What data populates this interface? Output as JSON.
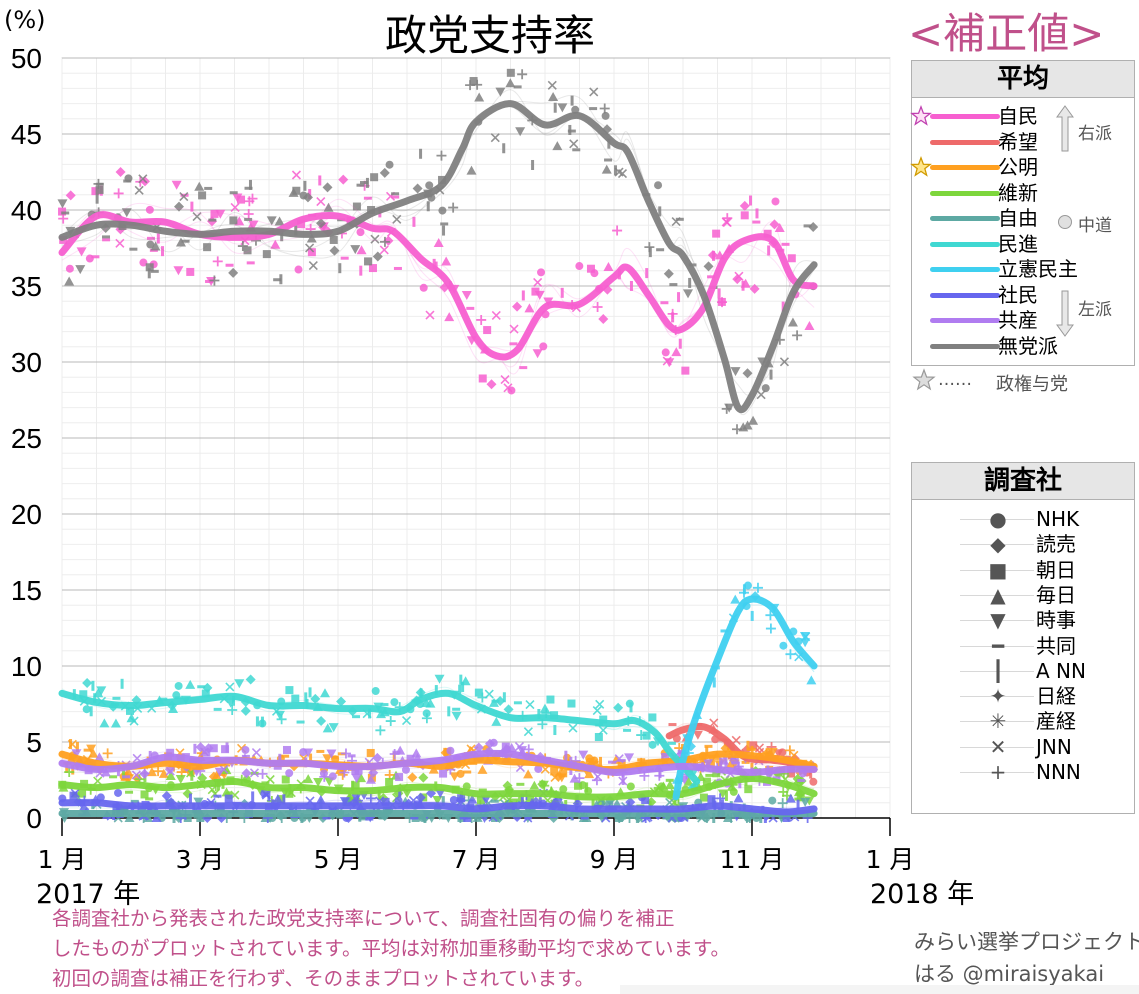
{
  "title": "政党支持率",
  "subtitle": "<補正値>",
  "y_unit": "(%)",
  "year_labels": {
    "start": "2017 年",
    "end": "2018 年"
  },
  "legend_average": {
    "heading": "平均",
    "items": [
      {
        "label": "自民",
        "color": "#f75fd0",
        "ruling": true
      },
      {
        "label": "希望",
        "color": "#ee6a6a",
        "ruling": false
      },
      {
        "label": "公明",
        "color": "#ffa020",
        "ruling": true
      },
      {
        "label": "維新",
        "color": "#7dd63c",
        "ruling": false
      },
      {
        "label": "自由",
        "color": "#5da9a3",
        "ruling": false
      },
      {
        "label": "民進",
        "color": "#3fd8d2",
        "ruling": false
      },
      {
        "label": "立憲民主",
        "color": "#3fd0f0",
        "ruling": false
      },
      {
        "label": "社民",
        "color": "#6666ee",
        "ruling": false
      },
      {
        "label": "共産",
        "color": "#b07cf0",
        "ruling": false
      },
      {
        "label": "無党派",
        "color": "#808080",
        "ruling": false
      }
    ],
    "right_label": "右派",
    "center_label": "中道",
    "left_label": "左派",
    "ruling_note_marks": "……",
    "ruling_note": "政権与党"
  },
  "legend_pollsters": {
    "heading": "調査社",
    "items": [
      {
        "label": "NHK",
        "marker": "●"
      },
      {
        "label": "読売",
        "marker": "◆"
      },
      {
        "label": "朝日",
        "marker": "■"
      },
      {
        "label": "毎日",
        "marker": "▲"
      },
      {
        "label": "時事",
        "marker": "▼"
      },
      {
        "label": "共同",
        "marker": "━"
      },
      {
        "label": "A NN",
        "marker": "┃"
      },
      {
        "label": "日経",
        "marker": "✦"
      },
      {
        "label": "産経",
        "marker": "✳"
      },
      {
        "label": "JNN",
        "marker": "✕"
      },
      {
        "label": "NNN",
        "marker": "+"
      }
    ]
  },
  "note_lines": [
    "各調査社から発表された政党支持率について、調査社固有の偏りを補正",
    "したものがプロットされています。平均は対称加重移動平均で求めています。",
    "初回の調査は補正を行わず、そのままプロットされています。"
  ],
  "credit": {
    "line1": "みらい選挙プロジェクト",
    "line2": "はる @miraisyakai"
  },
  "chart_data": {
    "type": "line",
    "title": "政党支持率",
    "xlabel": "",
    "ylabel": "(%)",
    "xlim": [
      1,
      13
    ],
    "ylim": [
      0,
      50
    ],
    "y_ticks": [
      0,
      5,
      10,
      15,
      20,
      25,
      30,
      35,
      40,
      45,
      50
    ],
    "x_ticks": [
      {
        "x": 1,
        "label": "1 月"
      },
      {
        "x": 3,
        "label": "3 月"
      },
      {
        "x": 5,
        "label": "5 月"
      },
      {
        "x": 7,
        "label": "7 月"
      },
      {
        "x": 9,
        "label": "9 月"
      },
      {
        "x": 11,
        "label": "11 月"
      },
      {
        "x": 13,
        "label": "1 月"
      }
    ],
    "grid": true,
    "legend_position": "right",
    "series": [
      {
        "name": "自民",
        "color": "#f75fd0",
        "x": [
          1,
          1.5,
          2,
          2.5,
          3,
          3.5,
          4,
          4.5,
          5,
          5.5,
          5.8,
          6.2,
          6.6,
          7,
          7.3,
          7.6,
          8,
          8.5,
          9,
          9.2,
          9.5,
          9.8,
          10,
          10.3,
          10.6,
          10.9,
          11.3,
          11.6,
          11.9
        ],
        "y": [
          37.2,
          39.6,
          39.2,
          39.2,
          38.4,
          38.2,
          38.4,
          39.4,
          39.6,
          38.8,
          38.6,
          36.8,
          35.2,
          31.6,
          30.4,
          30.8,
          33.6,
          33.8,
          35.6,
          36.2,
          34.4,
          32.4,
          32.2,
          33.6,
          36.8,
          38.0,
          38.0,
          35.4,
          35.0
        ]
      },
      {
        "name": "希望",
        "color": "#ee6a6a",
        "x": [
          9.8,
          10,
          10.3,
          10.6,
          10.9,
          11.3,
          11.6,
          11.9
        ],
        "y": [
          5.4,
          5.8,
          6.0,
          5.2,
          4.0,
          3.8,
          3.6,
          3.2
        ]
      },
      {
        "name": "公明",
        "color": "#ffa020",
        "x": [
          1,
          1.5,
          2,
          2.5,
          3,
          3.5,
          4,
          4.5,
          5,
          5.5,
          6,
          6.5,
          7,
          7.5,
          8,
          8.5,
          9,
          9.5,
          10,
          10.5,
          11,
          11.5,
          11.9
        ],
        "y": [
          4.2,
          3.6,
          3.4,
          3.6,
          3.4,
          3.8,
          3.6,
          3.6,
          3.5,
          3.4,
          3.6,
          3.4,
          3.8,
          3.7,
          3.6,
          3.3,
          3.2,
          3.6,
          3.8,
          4.2,
          4.1,
          3.8,
          3.4
        ]
      },
      {
        "name": "維新",
        "color": "#7dd63c",
        "x": [
          1,
          1.5,
          2,
          2.5,
          3,
          3.5,
          4,
          4.5,
          5,
          5.5,
          6,
          6.5,
          7,
          7.5,
          8,
          8.5,
          9,
          9.5,
          10,
          10.5,
          11,
          11.5,
          11.9
        ],
        "y": [
          2.2,
          2.0,
          2.2,
          2.0,
          2.2,
          2.4,
          2.0,
          2.0,
          1.8,
          1.8,
          2.0,
          2.0,
          1.6,
          1.6,
          1.6,
          1.4,
          1.4,
          1.6,
          1.6,
          2.2,
          2.6,
          2.2,
          1.6
        ]
      },
      {
        "name": "自由",
        "color": "#5da9a3",
        "x": [
          1,
          2,
          3,
          4,
          5,
          6,
          7,
          8,
          9,
          10,
          11,
          11.9
        ],
        "y": [
          0.3,
          0.3,
          0.3,
          0.3,
          0.3,
          0.3,
          0.3,
          0.3,
          0.3,
          0.3,
          0.3,
          0.3
        ]
      },
      {
        "name": "民進",
        "color": "#3fd8d2",
        "x": [
          1,
          1.5,
          2,
          2.5,
          3,
          3.5,
          4,
          4.5,
          5,
          5.5,
          5.9,
          6.2,
          6.6,
          7,
          7.5,
          8,
          8.5,
          9,
          9.3,
          9.6,
          9.8,
          10,
          10.2
        ],
        "y": [
          8.2,
          7.6,
          7.4,
          7.6,
          7.8,
          8.0,
          7.4,
          7.4,
          7.2,
          7.2,
          7.0,
          7.8,
          8.2,
          7.4,
          6.6,
          6.6,
          6.4,
          6.2,
          6.4,
          5.6,
          4.4,
          3.4,
          2.4
        ]
      },
      {
        "name": "立憲民主",
        "color": "#3fd0f0",
        "x": [
          9.9,
          10,
          10.2,
          10.5,
          10.8,
          11,
          11.3,
          11.6,
          11.9
        ],
        "y": [
          1.4,
          3.8,
          6.8,
          10.4,
          13.6,
          14.4,
          13.8,
          11.6,
          10.0
        ]
      },
      {
        "name": "社民",
        "color": "#6666ee",
        "x": [
          1,
          1.5,
          2,
          2.5,
          3,
          3.5,
          4,
          4.5,
          5,
          5.5,
          6,
          6.5,
          7,
          7.5,
          8,
          8.5,
          9,
          9.5,
          10,
          10.5,
          11,
          11.5,
          11.9
        ],
        "y": [
          1.0,
          1.0,
          0.8,
          0.8,
          0.8,
          0.8,
          0.8,
          0.8,
          0.8,
          0.8,
          0.8,
          0.8,
          0.6,
          0.8,
          0.8,
          0.6,
          0.6,
          0.6,
          0.6,
          0.8,
          0.6,
          0.4,
          0.6
        ]
      },
      {
        "name": "共産",
        "color": "#b07cf0",
        "x": [
          1,
          1.5,
          2,
          2.5,
          3,
          3.5,
          4,
          4.5,
          5,
          5.5,
          6,
          6.5,
          7,
          7.5,
          8,
          8.5,
          9,
          9.5,
          10,
          10.5,
          11,
          11.5,
          11.9
        ],
        "y": [
          3.6,
          3.2,
          3.4,
          4.0,
          3.8,
          3.8,
          3.6,
          3.6,
          3.4,
          3.4,
          3.6,
          3.8,
          4.2,
          4.2,
          3.8,
          3.4,
          3.0,
          3.2,
          3.4,
          3.2,
          3.0,
          3.2,
          3.2
        ]
      },
      {
        "name": "無党派",
        "color": "#808080",
        "x": [
          1,
          1.5,
          2,
          2.5,
          3,
          3.5,
          4,
          4.5,
          5,
          5.5,
          6,
          6.5,
          6.8,
          7,
          7.5,
          8,
          8.5,
          9,
          9.2,
          9.5,
          9.8,
          10,
          10.3,
          10.6,
          10.8,
          11,
          11.3,
          11.6,
          11.9
        ],
        "y": [
          38.2,
          39.0,
          39.0,
          38.6,
          38.4,
          38.6,
          38.6,
          38.4,
          38.6,
          39.8,
          40.6,
          41.6,
          44.0,
          45.8,
          47.0,
          45.6,
          46.2,
          44.4,
          43.8,
          40.6,
          37.8,
          37.0,
          34.4,
          30.2,
          27.0,
          27.8,
          31.0,
          34.6,
          36.4
        ]
      }
    ],
    "pollsters": [
      "NHK",
      "読売",
      "朝日",
      "毎日",
      "時事",
      "共同",
      "A NN",
      "日経",
      "産経",
      "JNN",
      "NNN"
    ]
  }
}
